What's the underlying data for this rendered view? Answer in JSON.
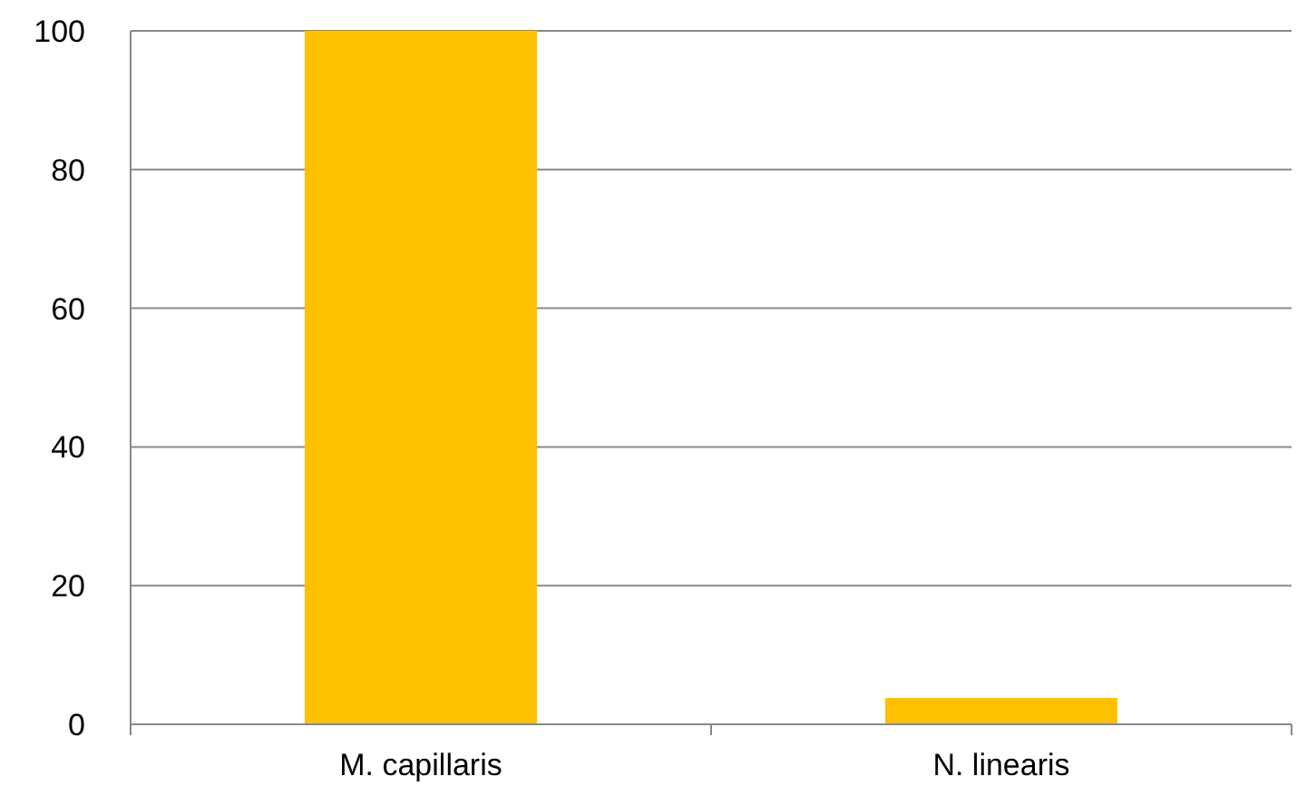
{
  "chart_data": {
    "type": "bar",
    "categories": [
      "M. capillaris",
      "N. linearis"
    ],
    "values": [
      100,
      3.8
    ],
    "color": "#ffc000",
    "ylim": [
      0,
      100
    ],
    "yticks": [
      0,
      20,
      40,
      60,
      80,
      100
    ],
    "grid": "y"
  }
}
